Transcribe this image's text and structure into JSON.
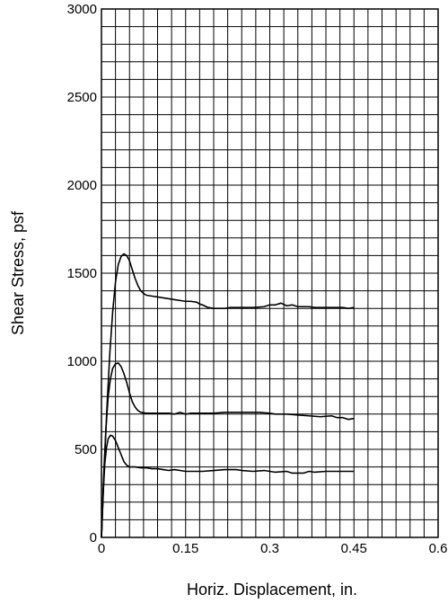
{
  "chart_data": {
    "type": "line",
    "title": "",
    "xlabel": "Horiz. Displacement, in.",
    "ylabel": "Shear Stress, psf",
    "xlim": [
      0,
      0.6
    ],
    "ylim": [
      0,
      3000
    ],
    "x_ticks": [
      0,
      0.15,
      0.3,
      0.45,
      0.6
    ],
    "x_tick_labels": [
      "0",
      "0.15",
      "0.3",
      "0.45",
      "0.6"
    ],
    "y_ticks": [
      0,
      500,
      1000,
      1500,
      2000,
      2500,
      3000
    ],
    "y_tick_labels": [
      "0",
      "500",
      "1000",
      "1500",
      "2000",
      "2500",
      "3000"
    ],
    "grid": true,
    "grid_x_step": 0.025,
    "grid_y_step": 100,
    "series": [
      {
        "points": [
          [
            0,
            0
          ],
          [
            0.005,
            400
          ],
          [
            0.01,
            750
          ],
          [
            0.015,
            1050
          ],
          [
            0.02,
            1280
          ],
          [
            0.025,
            1450
          ],
          [
            0.03,
            1550
          ],
          [
            0.035,
            1595
          ],
          [
            0.04,
            1610
          ],
          [
            0.045,
            1600
          ],
          [
            0.05,
            1570
          ],
          [
            0.055,
            1520
          ],
          [
            0.06,
            1470
          ],
          [
            0.065,
            1430
          ],
          [
            0.07,
            1400
          ],
          [
            0.075,
            1385
          ],
          [
            0.08,
            1375
          ],
          [
            0.09,
            1370
          ],
          [
            0.1,
            1365
          ],
          [
            0.11,
            1360
          ],
          [
            0.12,
            1355
          ],
          [
            0.13,
            1350
          ],
          [
            0.14,
            1345
          ],
          [
            0.15,
            1340
          ],
          [
            0.16,
            1340
          ],
          [
            0.17,
            1335
          ],
          [
            0.175,
            1325
          ],
          [
            0.18,
            1320
          ],
          [
            0.19,
            1305
          ],
          [
            0.2,
            1300
          ],
          [
            0.21,
            1300
          ],
          [
            0.22,
            1300
          ],
          [
            0.23,
            1305
          ],
          [
            0.25,
            1305
          ],
          [
            0.27,
            1305
          ],
          [
            0.29,
            1310
          ],
          [
            0.3,
            1320
          ],
          [
            0.31,
            1320
          ],
          [
            0.32,
            1330
          ],
          [
            0.33,
            1315
          ],
          [
            0.34,
            1320
          ],
          [
            0.35,
            1310
          ],
          [
            0.37,
            1310
          ],
          [
            0.38,
            1305
          ],
          [
            0.4,
            1305
          ],
          [
            0.42,
            1305
          ],
          [
            0.43,
            1305
          ],
          [
            0.44,
            1300
          ],
          [
            0.45,
            1305
          ]
        ]
      },
      {
        "points": [
          [
            0,
            0
          ],
          [
            0.004,
            350
          ],
          [
            0.008,
            620
          ],
          [
            0.012,
            800
          ],
          [
            0.016,
            900
          ],
          [
            0.02,
            960
          ],
          [
            0.025,
            985
          ],
          [
            0.03,
            990
          ],
          [
            0.035,
            970
          ],
          [
            0.04,
            930
          ],
          [
            0.045,
            880
          ],
          [
            0.05,
            820
          ],
          [
            0.055,
            770
          ],
          [
            0.06,
            740
          ],
          [
            0.065,
            720
          ],
          [
            0.07,
            710
          ],
          [
            0.08,
            705
          ],
          [
            0.1,
            705
          ],
          [
            0.12,
            705
          ],
          [
            0.13,
            700
          ],
          [
            0.14,
            710
          ],
          [
            0.15,
            700
          ],
          [
            0.16,
            705
          ],
          [
            0.18,
            705
          ],
          [
            0.2,
            705
          ],
          [
            0.22,
            710
          ],
          [
            0.24,
            710
          ],
          [
            0.26,
            710
          ],
          [
            0.28,
            710
          ],
          [
            0.3,
            705
          ],
          [
            0.31,
            700
          ],
          [
            0.33,
            700
          ],
          [
            0.35,
            695
          ],
          [
            0.37,
            690
          ],
          [
            0.39,
            685
          ],
          [
            0.41,
            690
          ],
          [
            0.42,
            680
          ],
          [
            0.43,
            680
          ],
          [
            0.44,
            670
          ],
          [
            0.45,
            675
          ]
        ]
      },
      {
        "points": [
          [
            0,
            0
          ],
          [
            0.003,
            250
          ],
          [
            0.006,
            420
          ],
          [
            0.009,
            510
          ],
          [
            0.012,
            560
          ],
          [
            0.016,
            580
          ],
          [
            0.02,
            575
          ],
          [
            0.025,
            550
          ],
          [
            0.03,
            510
          ],
          [
            0.035,
            470
          ],
          [
            0.04,
            430
          ],
          [
            0.045,
            410
          ],
          [
            0.05,
            400
          ],
          [
            0.06,
            400
          ],
          [
            0.07,
            395
          ],
          [
            0.08,
            395
          ],
          [
            0.09,
            390
          ],
          [
            0.1,
            390
          ],
          [
            0.11,
            385
          ],
          [
            0.12,
            380
          ],
          [
            0.13,
            385
          ],
          [
            0.14,
            380
          ],
          [
            0.15,
            375
          ],
          [
            0.16,
            375
          ],
          [
            0.18,
            375
          ],
          [
            0.2,
            380
          ],
          [
            0.22,
            385
          ],
          [
            0.24,
            385
          ],
          [
            0.25,
            380
          ],
          [
            0.27,
            375
          ],
          [
            0.29,
            380
          ],
          [
            0.3,
            375
          ],
          [
            0.31,
            370
          ],
          [
            0.33,
            375
          ],
          [
            0.34,
            365
          ],
          [
            0.36,
            365
          ],
          [
            0.37,
            375
          ],
          [
            0.38,
            370
          ],
          [
            0.4,
            375
          ],
          [
            0.42,
            375
          ],
          [
            0.45,
            375
          ]
        ]
      }
    ]
  }
}
